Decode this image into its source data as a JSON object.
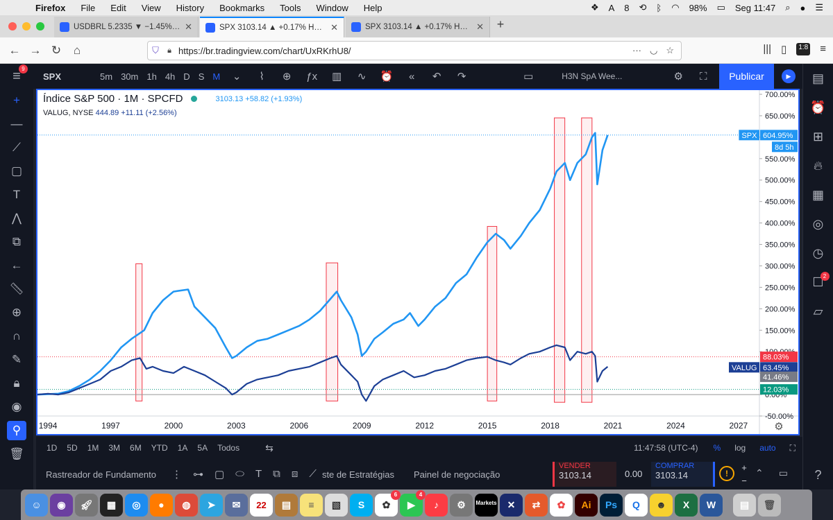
{
  "menubar": {
    "app": "Firefox",
    "items": [
      "File",
      "Edit",
      "View",
      "History",
      "Bookmarks",
      "Tools",
      "Window",
      "Help"
    ],
    "status": {
      "notifications": "8",
      "battery": "98%",
      "clock": "Seg 11:47"
    }
  },
  "tabs": [
    {
      "label": "USDBRL 5.2335 ▼ −1.45% H3N",
      "active": false
    },
    {
      "label": "SPX 3103.14 ▲ +0.17% H3N Sp",
      "active": true
    },
    {
      "label": "SPX 3103.14 ▲ +0.17% H3N Sp",
      "active": false
    }
  ],
  "navbar": {
    "url": "https://br.tradingview.com/chart/UxRKrhU8/",
    "zoom": "1:8"
  },
  "tv_toolbar": {
    "menu_badge": "9",
    "symbol": "SPX",
    "timeframes": [
      "5m",
      "30m",
      "1h",
      "4h",
      "D",
      "S",
      "M"
    ],
    "active_timeframe": "M",
    "layout_name": "H3N SpA Wee...",
    "publish_label": "Publicar"
  },
  "legend": {
    "title": "Índice S&P 500 · 1M · SPCFD",
    "spx_quote": "3103.13  +58.82  (+1.93%)",
    "valug_name": "VALUG, NYSE",
    "valug_quote": "444.89  +11.11  (+2.56%)"
  },
  "right_badge": "2",
  "chart_data": {
    "type": "line",
    "x_axis_labels": [
      "1994",
      "1997",
      "2000",
      "2003",
      "2006",
      "2009",
      "2012",
      "2015",
      "2018",
      "2021",
      "2024",
      "2027"
    ],
    "y_axis_labels": [
      "700.00%",
      "650.00%",
      "600.00%",
      "550.00%",
      "500.00%",
      "450.00%",
      "400.00%",
      "350.00%",
      "300.00%",
      "250.00%",
      "200.00%",
      "150.00%",
      "100.00%",
      "50.00%",
      "0.00%",
      "-50.00%"
    ],
    "ylim": [
      -50,
      700
    ],
    "xlim": [
      1993.5,
      2028
    ],
    "series": [
      {
        "name": "SPX",
        "color": "#2196f3",
        "x": [
          1993.5,
          1994.5,
          1995.0,
          1995.5,
          1996.0,
          1996.5,
          1997.0,
          1997.5,
          1998.0,
          1998.6,
          1999.0,
          1999.5,
          2000.0,
          2000.7,
          2001.0,
          2001.5,
          2002.0,
          2002.5,
          2002.8,
          2003.0,
          2003.5,
          2004.0,
          2004.5,
          2005.0,
          2005.5,
          2006.0,
          2006.5,
          2007.0,
          2007.8,
          2008.0,
          2008.5,
          2008.8,
          2009.0,
          2009.2,
          2009.6,
          2010.0,
          2010.5,
          2011.0,
          2011.3,
          2011.7,
          2012.0,
          2012.5,
          2013.0,
          2013.5,
          2014.0,
          2014.5,
          2015.0,
          2015.4,
          2015.8,
          2016.1,
          2016.6,
          2017.0,
          2017.5,
          2018.0,
          2018.3,
          2018.7,
          2018.95,
          2019.3,
          2019.7,
          2020.0,
          2020.15,
          2020.25,
          2020.5,
          2020.75
        ],
        "values": [
          0,
          2,
          8,
          20,
          35,
          55,
          80,
          110,
          130,
          150,
          190,
          220,
          240,
          245,
          205,
          180,
          155,
          110,
          85,
          90,
          110,
          125,
          130,
          140,
          150,
          160,
          175,
          195,
          240,
          220,
          180,
          140,
          90,
          100,
          130,
          145,
          165,
          175,
          190,
          160,
          175,
          205,
          225,
          260,
          280,
          320,
          355,
          375,
          360,
          340,
          370,
          400,
          430,
          480,
          520,
          540,
          500,
          540,
          560,
          600,
          610,
          490,
          570,
          605
        ]
      },
      {
        "name": "VALUG",
        "color": "#1c3f95",
        "x": [
          1993.5,
          1994.0,
          1994.5,
          1995.0,
          1995.5,
          1996.0,
          1996.5,
          1997.0,
          1997.5,
          1998.0,
          1998.4,
          1998.7,
          1999.0,
          1999.5,
          2000.0,
          2000.5,
          2001.0,
          2001.5,
          2002.0,
          2002.5,
          2002.8,
          2003.0,
          2003.5,
          2004.0,
          2004.5,
          2005.0,
          2005.5,
          2006.0,
          2006.5,
          2007.0,
          2007.5,
          2007.8,
          2008.0,
          2008.5,
          2008.8,
          2009.0,
          2009.2,
          2009.6,
          2010.0,
          2010.5,
          2011.0,
          2011.5,
          2012.0,
          2012.5,
          2013.0,
          2013.5,
          2014.0,
          2014.5,
          2015.0,
          2015.4,
          2015.8,
          2016.1,
          2016.6,
          2017.0,
          2017.5,
          2018.0,
          2018.3,
          2018.7,
          2018.95,
          2019.3,
          2019.7,
          2020.0,
          2020.15,
          2020.25,
          2020.5,
          2020.75
        ],
        "values": [
          0,
          2,
          0,
          5,
          15,
          25,
          35,
          55,
          65,
          80,
          85,
          60,
          65,
          55,
          50,
          65,
          55,
          45,
          30,
          15,
          0,
          5,
          25,
          35,
          40,
          45,
          55,
          60,
          65,
          75,
          85,
          90,
          70,
          45,
          30,
          0,
          -15,
          20,
          35,
          45,
          55,
          40,
          45,
          55,
          60,
          70,
          80,
          85,
          88,
          80,
          75,
          70,
          85,
          95,
          100,
          110,
          115,
          110,
          80,
          100,
          95,
          100,
          90,
          30,
          55,
          65
        ]
      }
    ],
    "price_labels": [
      {
        "text": "SPX",
        "value": "604.95%",
        "color": "#2196f3",
        "y": 604.95
      },
      {
        "text": "8d 5h",
        "color": "#2196f3"
      },
      {
        "text": "88.03%",
        "color": "#f23645",
        "y": 88.03
      },
      {
        "text": "VALUG",
        "value": "63.45%",
        "color": "#1c3f95",
        "y": 63.45
      },
      {
        "text": "41.46%",
        "color": "#787b86",
        "y": 41.46
      },
      {
        "text": "12.03%",
        "color": "#089981",
        "y": 12.03
      }
    ],
    "highlight_boxes": [
      {
        "x0": 1998.2,
        "x1": 1998.5,
        "y0": -15,
        "y1": 305
      },
      {
        "x0": 2007.3,
        "x1": 2007.85,
        "y0": -15,
        "y1": 307
      },
      {
        "x0": 2015.0,
        "x1": 2015.45,
        "y0": -15,
        "y1": 392
      },
      {
        "x0": 2018.2,
        "x1": 2018.7,
        "y0": -18,
        "y1": 645
      },
      {
        "x0": 2019.5,
        "x1": 2020.0,
        "y0": -18,
        "y1": 645
      }
    ],
    "horizontal_lines": [
      {
        "y": 604.95,
        "color": "#2196f3",
        "style": "dotted"
      },
      {
        "y": 88.03,
        "color": "#f23645",
        "style": "dotted"
      },
      {
        "y": 12.03,
        "color": "#089981",
        "style": "dotted"
      },
      {
        "y": 0,
        "color": "#999999",
        "style": "solid"
      }
    ],
    "grid": false
  },
  "chart_bottom": {
    "ranges": [
      "1D",
      "5D",
      "1M",
      "3M",
      "6M",
      "YTD",
      "1A",
      "5A",
      "Todos"
    ],
    "time": "11:47:58 (UTC-4)",
    "percent": "%",
    "log": "log",
    "auto": "auto"
  },
  "bottom_panel": {
    "tab1": "Rastreador de Fundamento",
    "tab2": "ste de Estratégias",
    "tab3": "Painel de negociação",
    "sell_label": "VENDER",
    "sell_price": "3103.14",
    "spread": "0.00",
    "buy_label": "COMPRAR",
    "buy_price": "3103.14"
  },
  "dock": {
    "calendar_day": "22",
    "badge_a": "6",
    "badge_b": "4",
    "markets_label": "Markets"
  }
}
